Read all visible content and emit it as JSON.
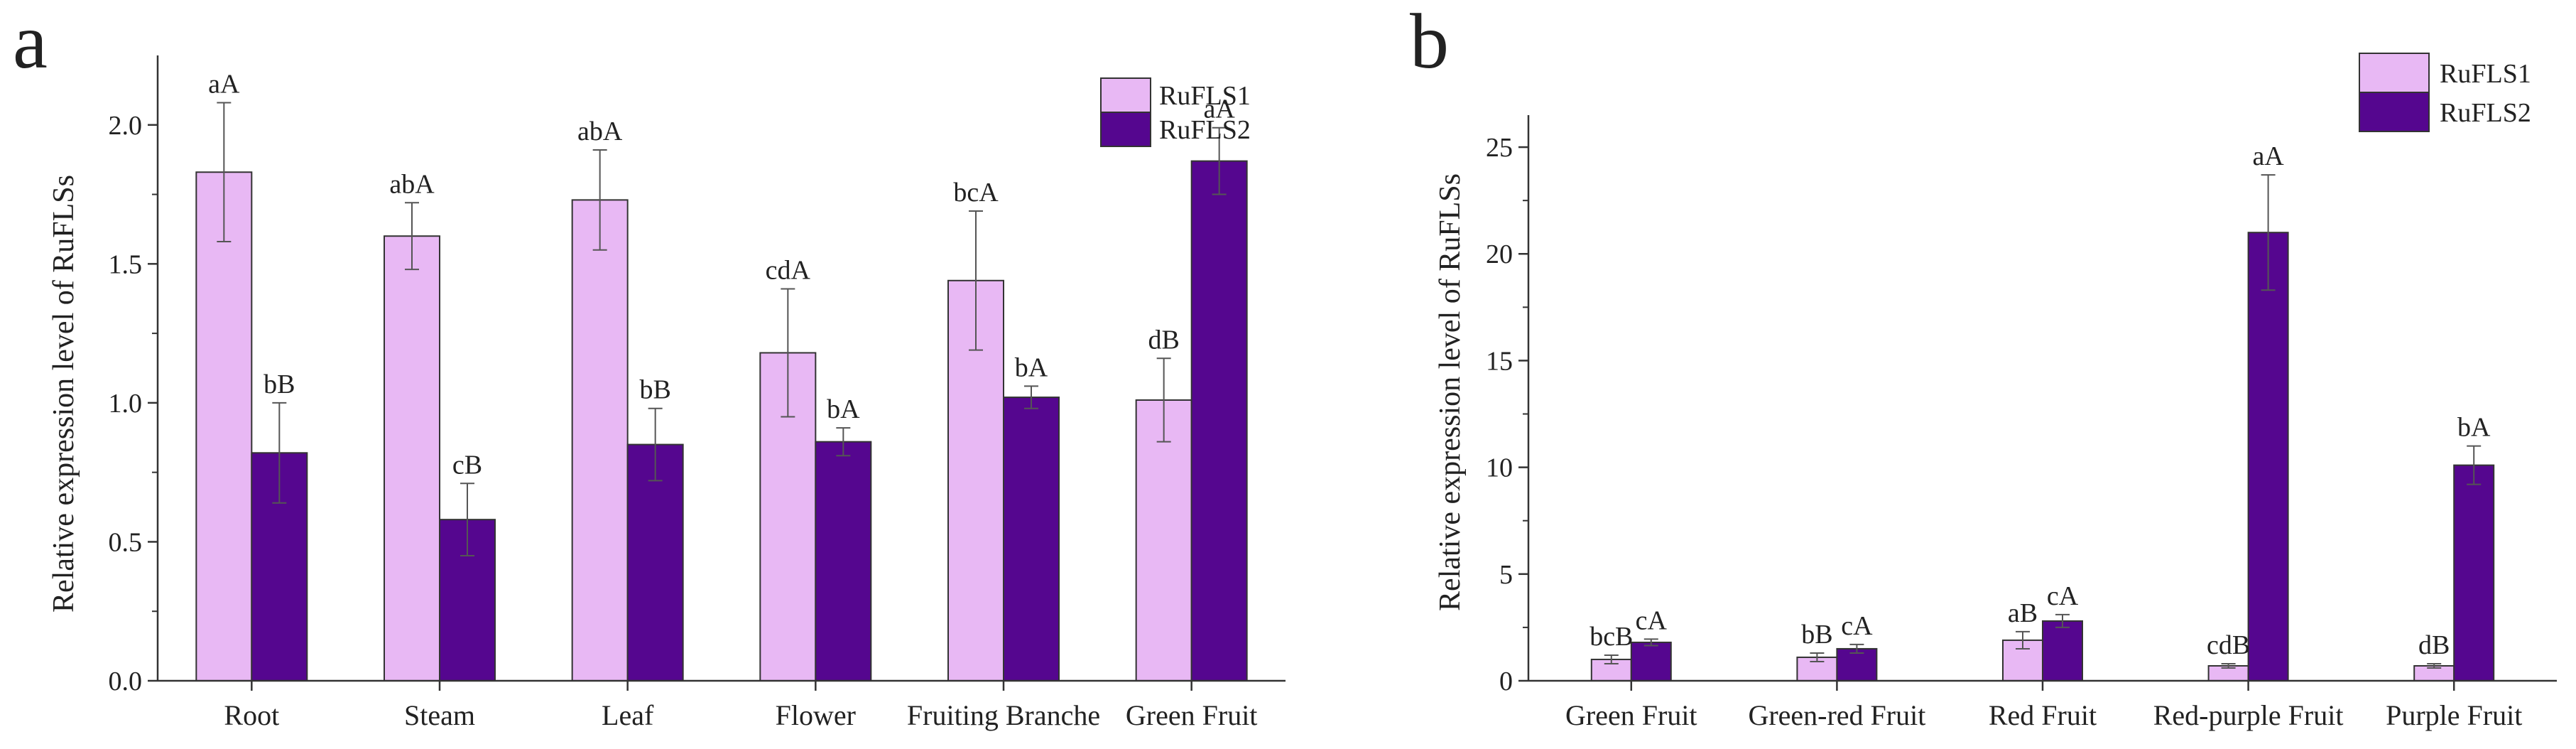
{
  "colors": {
    "series1": "#e8b8f4",
    "series2": "#55068f",
    "axis": "#333333",
    "errorbar": "#555555"
  },
  "chart_data": [
    {
      "panel": "a",
      "type": "bar",
      "title": "",
      "xlabel": "",
      "ylabel": "Relative expression level of RuFLSs",
      "ylim": [
        0,
        2.25
      ],
      "yticks": [
        0.0,
        0.5,
        1.0,
        1.5,
        2.0
      ],
      "yticklabels": [
        "0.0",
        "0.5",
        "1.0",
        "1.5",
        "2.0"
      ],
      "categories": [
        "Root",
        "Steam",
        "Leaf",
        "Flower",
        "Fruiting Branche",
        "Green Fruit"
      ],
      "legend": {
        "position": "top-right",
        "entries": [
          "RuFLS1",
          "RuFLS2"
        ]
      },
      "series": [
        {
          "name": "RuFLS1",
          "values": [
            1.83,
            1.6,
            1.73,
            1.18,
            1.44,
            1.01
          ],
          "errors": [
            0.25,
            0.12,
            0.18,
            0.23,
            0.25,
            0.15
          ],
          "labels": [
            "aA",
            "abA",
            "abA",
            "cdA",
            "bcA",
            "dB"
          ]
        },
        {
          "name": "RuFLS2",
          "values": [
            0.82,
            0.58,
            0.85,
            0.86,
            1.02,
            1.87
          ],
          "errors": [
            0.18,
            0.13,
            0.13,
            0.05,
            0.04,
            0.12
          ],
          "labels": [
            "bB",
            "cB",
            "bB",
            "bA",
            "bA",
            "aA"
          ]
        }
      ]
    },
    {
      "panel": "b",
      "type": "bar",
      "title": "",
      "xlabel": "",
      "ylabel": "Relative expression level of RuFLSs",
      "ylim": [
        0,
        26.5
      ],
      "yticks": [
        0,
        5,
        10,
        15,
        20,
        25
      ],
      "yticklabels": [
        "0",
        "5",
        "10",
        "15",
        "20",
        "25"
      ],
      "categories": [
        "Green Fruit",
        "Green-red Fruit",
        "Red Fruit",
        "Red-purple Fruit",
        "Purple Fruit"
      ],
      "legend": {
        "position": "top-right",
        "entries": [
          "RuFLS1",
          "RuFLS2"
        ]
      },
      "series": [
        {
          "name": "RuFLS1",
          "values": [
            1.0,
            1.1,
            1.9,
            0.7,
            0.7
          ],
          "errors": [
            0.2,
            0.2,
            0.4,
            0.1,
            0.1
          ],
          "labels": [
            "bcB",
            "bB",
            "aB",
            "cdB",
            "dB"
          ]
        },
        {
          "name": "RuFLS2",
          "values": [
            1.8,
            1.5,
            2.8,
            21.0,
            10.1
          ],
          "errors": [
            0.15,
            0.2,
            0.3,
            2.7,
            0.9
          ],
          "labels": [
            "cA",
            "cA",
            "cA",
            "aA",
            "bA"
          ]
        }
      ]
    }
  ]
}
